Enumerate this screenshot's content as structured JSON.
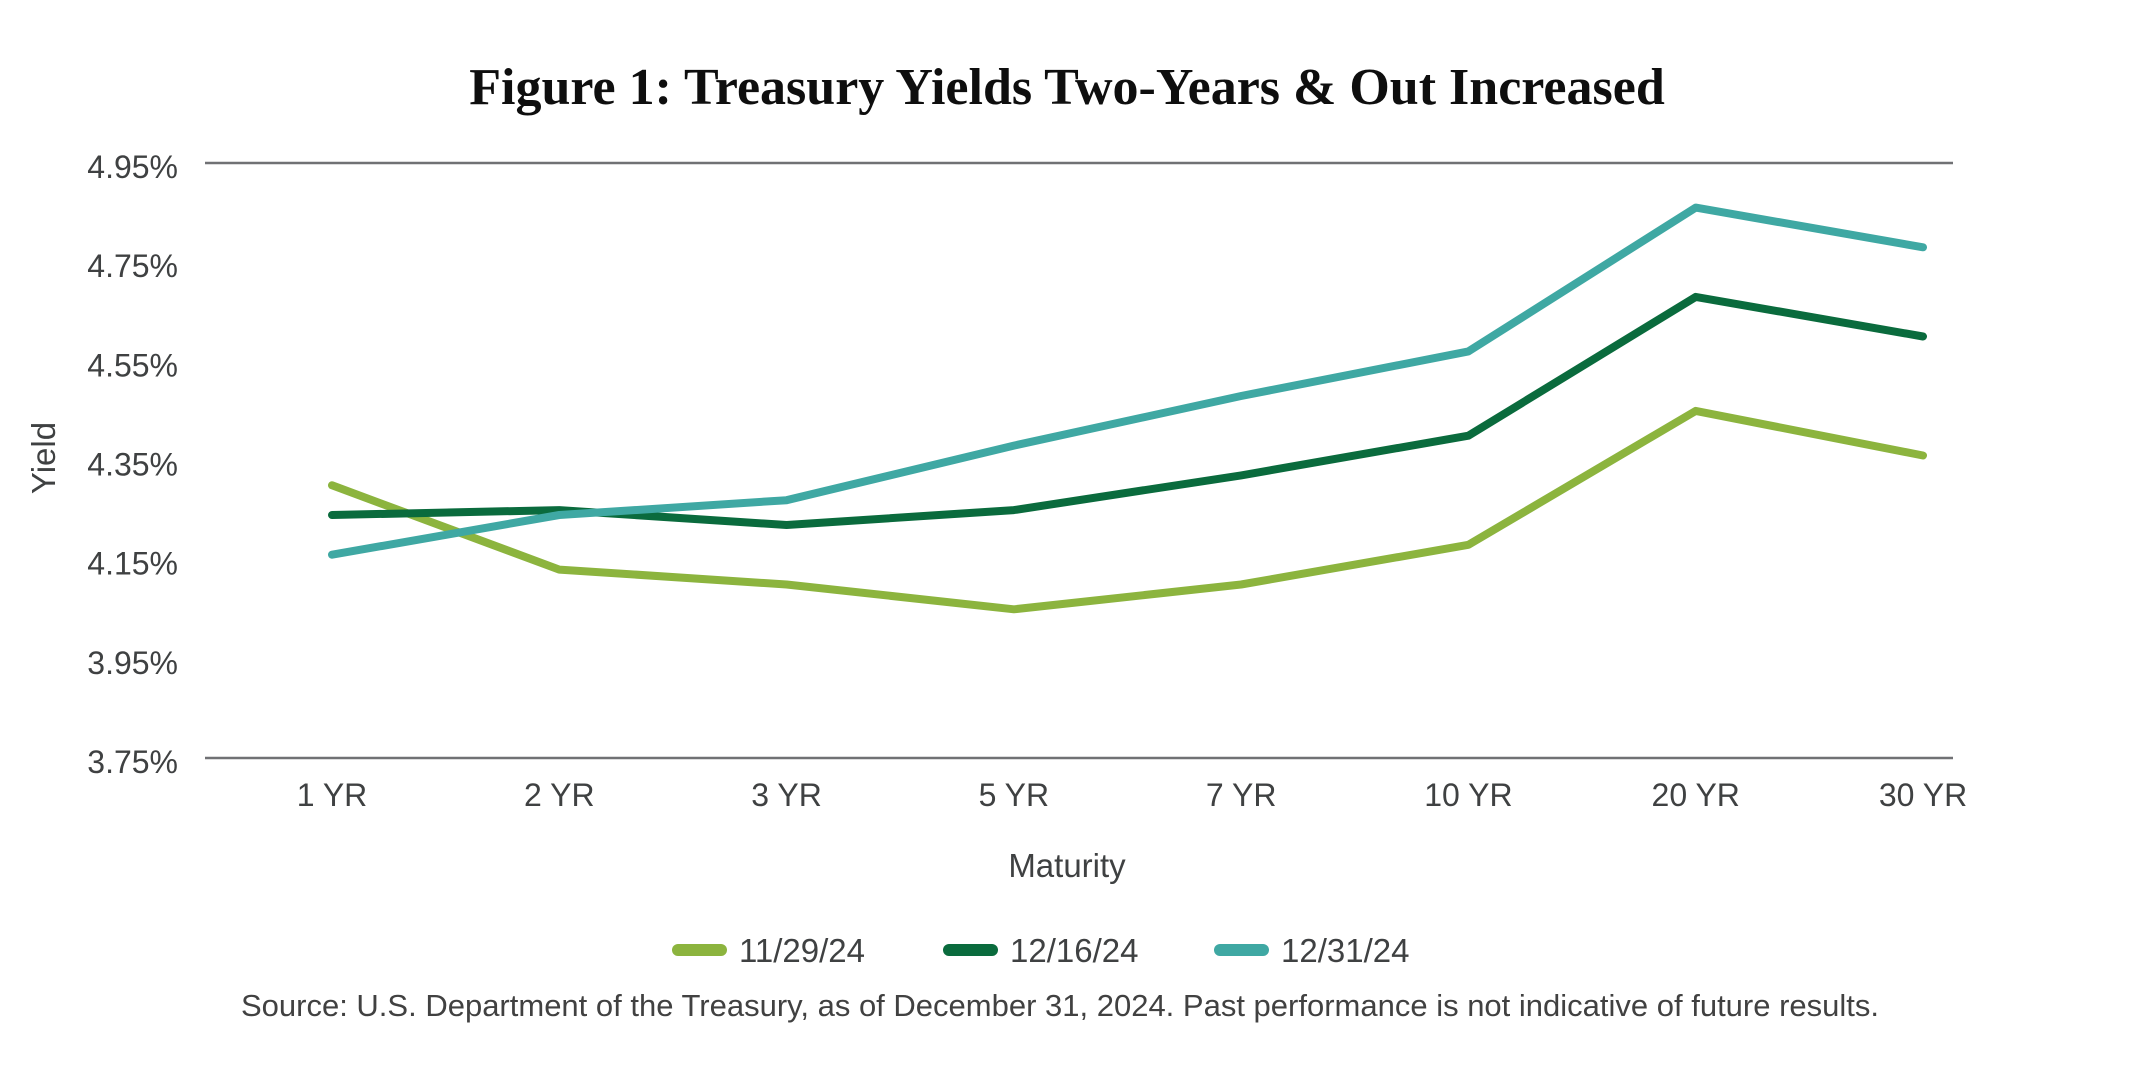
{
  "chart": {
    "title": "Figure 1: Treasury Yields Two-Years & Out Increased",
    "y_axis_title": "Yield",
    "x_axis_title": "Maturity",
    "source": "Source: U.S. Department of the Treasury, as of December 31, 2024. Past performance is not indicative of future results.",
    "colors": {
      "axis_line": "#707174",
      "tick_text": "#3f4142",
      "title_text": "#0e0e0e",
      "source_text": "#414141"
    }
  },
  "chart_data": {
    "type": "line",
    "categories": [
      "1 YR",
      "2 YR",
      "3 YR",
      "5 YR",
      "7 YR",
      "10 YR",
      "20 YR",
      "30 YR"
    ],
    "series": [
      {
        "name": "11/29/24",
        "color": "#8CB43E",
        "values": [
          4.3,
          4.13,
          4.1,
          4.05,
          4.1,
          4.18,
          4.45,
          4.36
        ]
      },
      {
        "name": "12/16/24",
        "color": "#0A6B3D",
        "values": [
          4.24,
          4.25,
          4.22,
          4.25,
          4.32,
          4.4,
          4.68,
          4.6
        ]
      },
      {
        "name": "12/31/24",
        "color": "#3FA8A3",
        "values": [
          4.16,
          4.24,
          4.27,
          4.38,
          4.48,
          4.57,
          4.86,
          4.78
        ]
      }
    ],
    "title": "Figure 1: Treasury Yields Two-Years & Out Increased",
    "xlabel": "Maturity",
    "ylabel": "Yield",
    "ylim": [
      3.75,
      4.95
    ],
    "ytick_step": 0.2,
    "ytick_labels": [
      "4.95%",
      "4.75%",
      "4.55%",
      "4.35%",
      "4.15%",
      "3.95%",
      "3.75%"
    ],
    "grid": "horizontal boundary lines at top (4.95%) and bottom (3.75%) only",
    "legend_position": "bottom-center",
    "line_width": 8
  }
}
